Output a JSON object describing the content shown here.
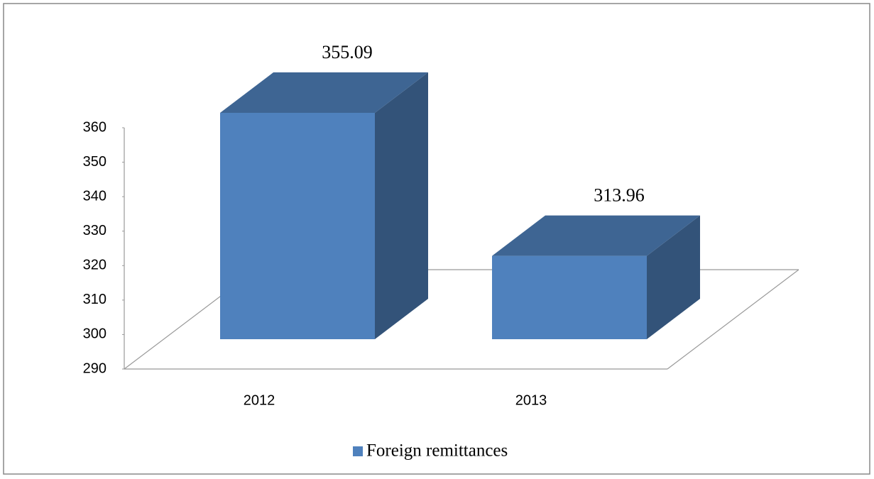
{
  "chart_data": {
    "type": "bar3d",
    "categories": [
      "2012",
      "2013"
    ],
    "series": [
      {
        "name": "Foreign remittances",
        "color": "#4f81bd",
        "values": [
          355.09,
          313.96
        ]
      }
    ],
    "ylim": [
      290,
      360
    ],
    "yticks": [
      290,
      300,
      310,
      320,
      330,
      340,
      350,
      360
    ],
    "legend": "bottom"
  }
}
